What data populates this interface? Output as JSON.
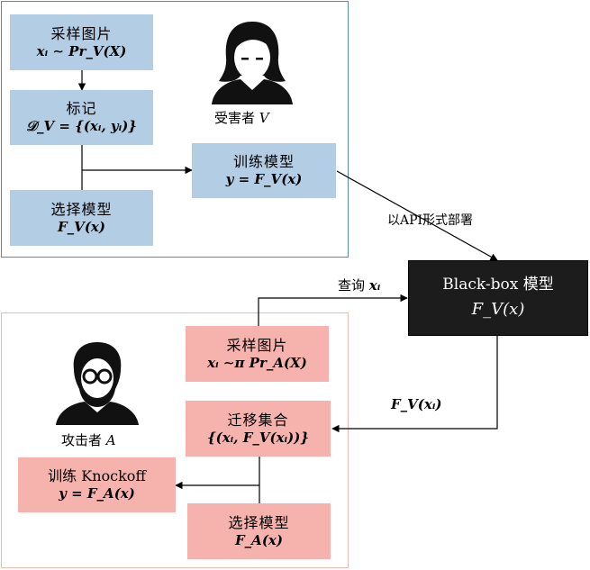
{
  "victim": {
    "sample": {
      "title": "采样图片",
      "formula": "xᵢ ∼ Pr_V(X)"
    },
    "label": {
      "title": "标记",
      "formula": "𝒟_V = {(xᵢ, yᵢ)}"
    },
    "select": {
      "title": "选择模型",
      "formula": "F_V(x)"
    },
    "train": {
      "title": "训练模型",
      "formula": "y = F_V(x)"
    },
    "actor": {
      "prefix": "受害者",
      "symbol": "V"
    }
  },
  "deploy_label": "以API形式部署",
  "blackbox": {
    "title": "Black-box 模型",
    "formula": "F_V(x)"
  },
  "query": {
    "prefix": "查询",
    "symbol": "xᵢ"
  },
  "output_label": "F_V(xᵢ)",
  "attacker": {
    "sample": {
      "title": "采样图片",
      "formula": "xᵢ ∼π Pr_A(X)"
    },
    "transfer": {
      "title": "迁移集合",
      "formula": "{(xᵢ, F_V(xᵢ))}"
    },
    "train": {
      "title": "训练 Knockoff",
      "formula": "y = F_A(x)"
    },
    "select": {
      "title": "选择模型",
      "formula": "F_A(x)"
    },
    "actor": {
      "prefix": "攻击者",
      "symbol": "A"
    }
  },
  "colors": {
    "victim_fill": "#b3cde4",
    "victim_border": "#5b86b8",
    "attacker_fill": "#f6b3ad",
    "attacker_border": "#f0b6b0",
    "blackbox_fill": "#1c1c1c"
  },
  "icons": [
    "victim-person-icon",
    "attacker-person-icon"
  ]
}
